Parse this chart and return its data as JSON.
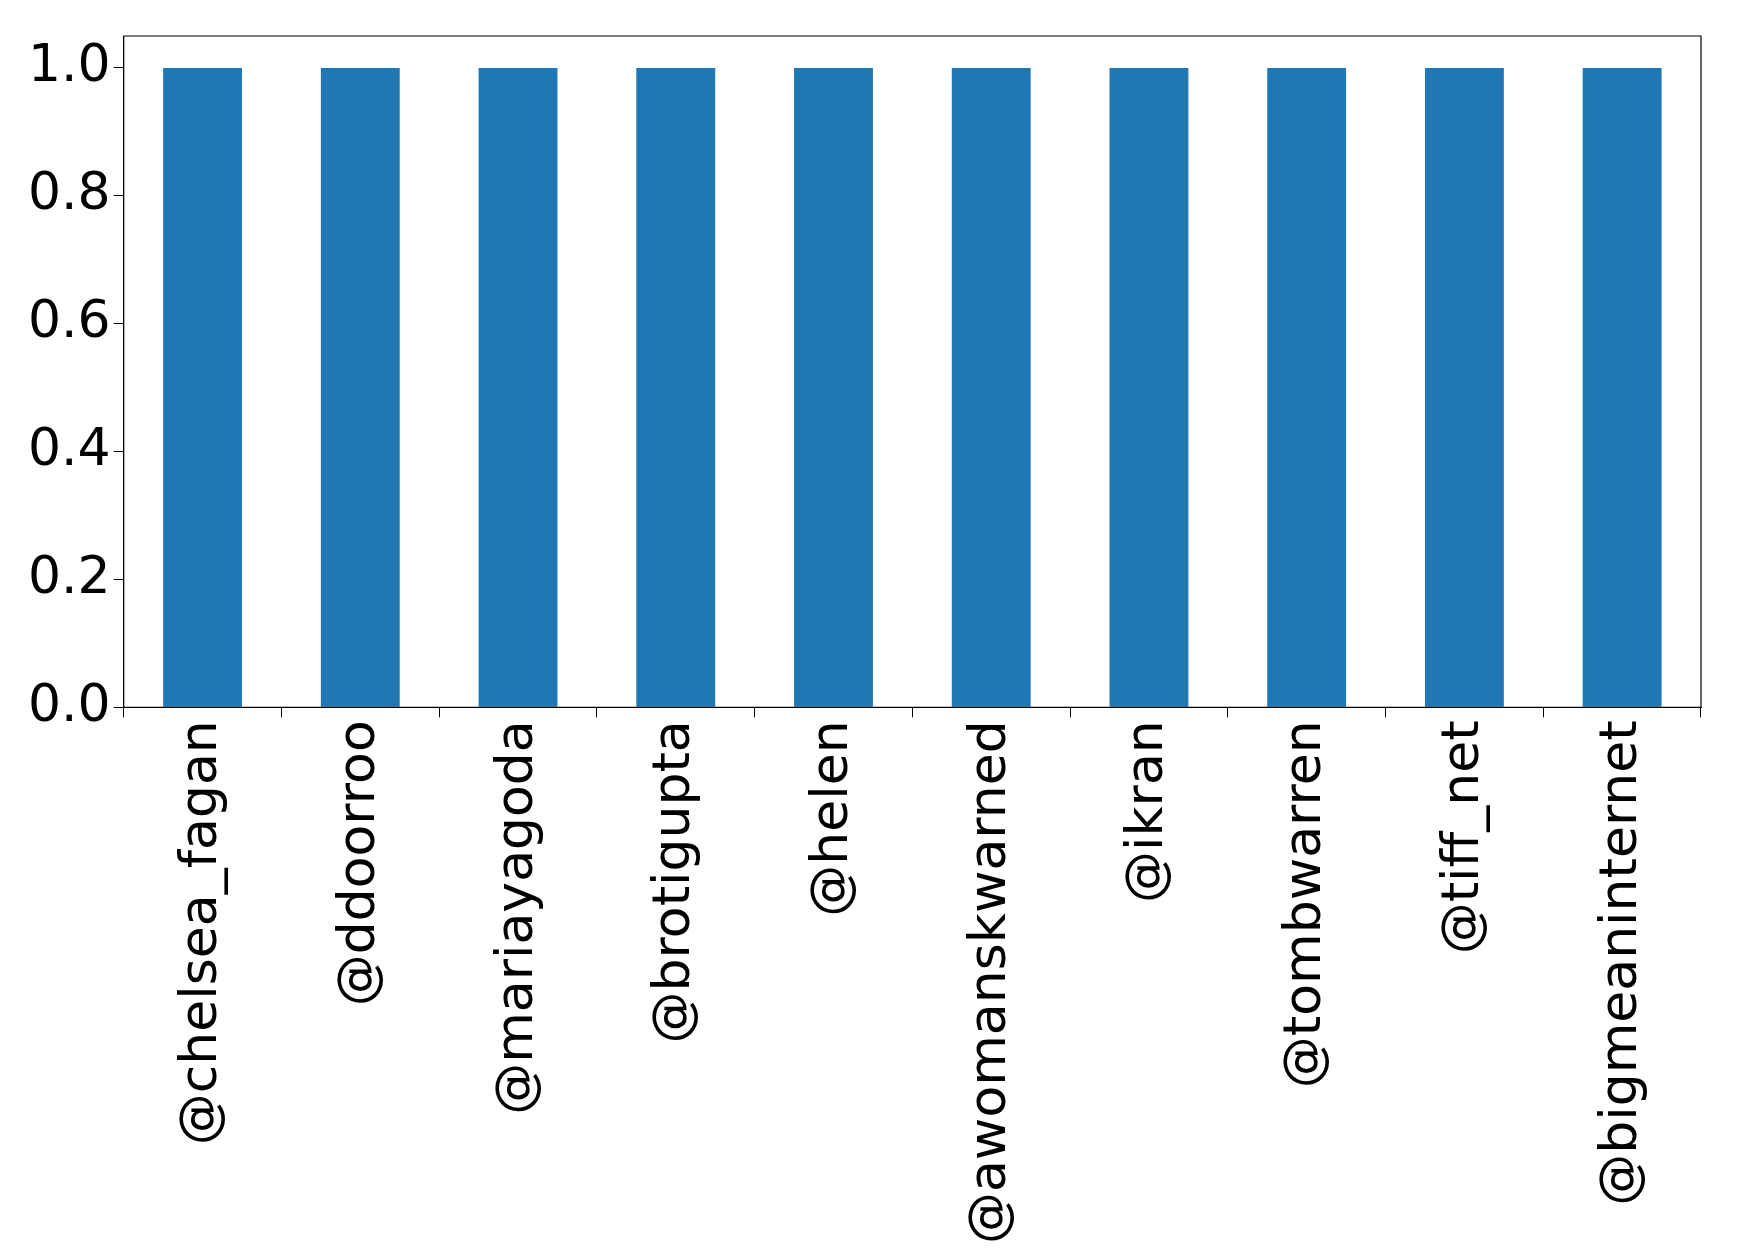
{
  "chart_data": {
    "type": "bar",
    "categories": [
      "@chelsea_fagan",
      "@ddoorroo",
      "@mariayagoda",
      "@brotigupta",
      "@helen",
      "@awomanskwarned",
      "@ikran",
      "@tombwarren",
      "@tiff_net",
      "@bigmeaninternet"
    ],
    "values": [
      1.0,
      1.0,
      1.0,
      1.0,
      1.0,
      1.0,
      1.0,
      1.0,
      1.0,
      1.0
    ],
    "color": "#1f77b4",
    "ylim": [
      0,
      1.05
    ],
    "yticks": [
      {
        "value": 0,
        "label": "0.0"
      },
      {
        "value": 0.2,
        "label": "0.2"
      },
      {
        "value": 0.4,
        "label": "0.4"
      },
      {
        "value": 0.6,
        "label": "0.6"
      },
      {
        "value": 0.8,
        "label": "0.8"
      },
      {
        "value": 1.0,
        "label": "1.0"
      }
    ],
    "grid": false,
    "legend": false
  }
}
